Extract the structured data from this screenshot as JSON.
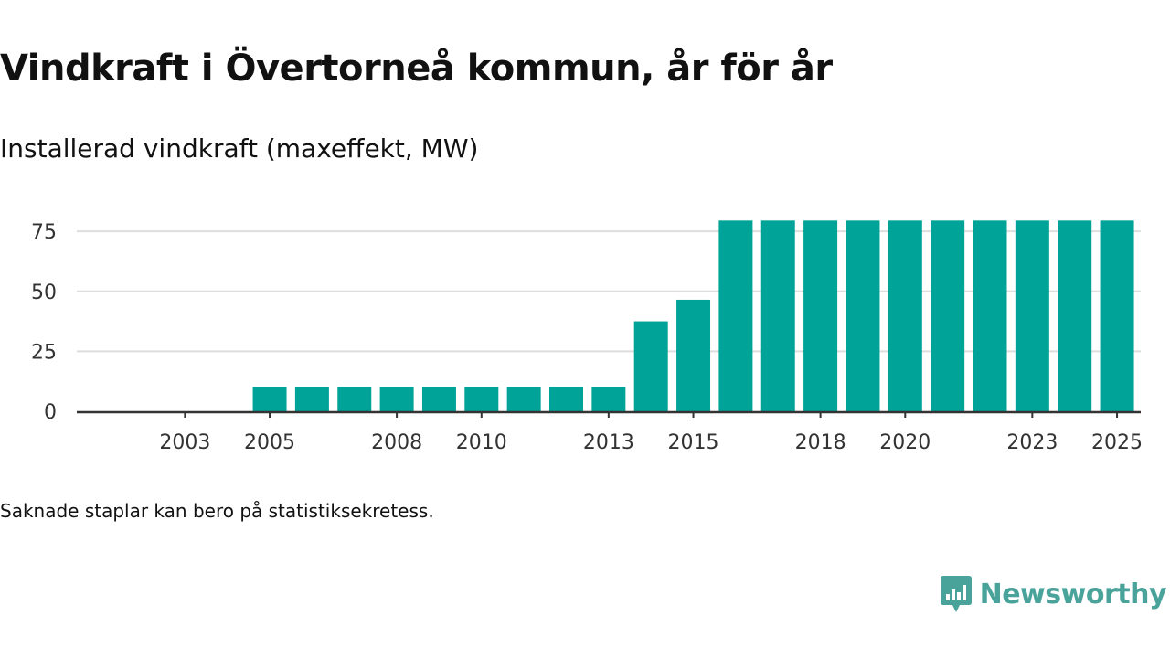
{
  "title": "Vindkraft i Övertorneå kommun, år för år",
  "subtitle": "Installerad vindkraft (maxeffekt, MW)",
  "footnote": "Saknade staplar kan bero på statistiksekretess.",
  "brand": {
    "name": "Newsworthy",
    "color": "#4aa39a",
    "icon": "newsworthy-logo-icon"
  },
  "colors": {
    "bar": "#00a398",
    "grid": "#dddddd",
    "axis": "#333333"
  },
  "chart_data": {
    "type": "bar",
    "title": "Vindkraft i Övertorneå kommun, år för år",
    "subtitle": "Installerad vindkraft (maxeffekt, MW)",
    "xlabel": "",
    "ylabel": "",
    "categories": [
      2002,
      2003,
      2004,
      2005,
      2006,
      2007,
      2008,
      2009,
      2010,
      2011,
      2012,
      2013,
      2014,
      2015,
      2016,
      2017,
      2018,
      2019,
      2020,
      2021,
      2022,
      2023,
      2024,
      2025
    ],
    "values": [
      null,
      null,
      null,
      10,
      10,
      10,
      10,
      10,
      10,
      10,
      10,
      10,
      37.5,
      46.5,
      79.5,
      79.5,
      79.5,
      79.5,
      79.5,
      79.5,
      79.5,
      79.5,
      79.5,
      79.5
    ],
    "ylim": [
      0,
      80
    ],
    "yticks": [
      "0",
      "25",
      "50",
      "75"
    ],
    "xticks": [
      "2003",
      "2005",
      "2008",
      "2010",
      "2013",
      "2015",
      "2018",
      "2020",
      "2023",
      "2025"
    ],
    "grid": true
  }
}
